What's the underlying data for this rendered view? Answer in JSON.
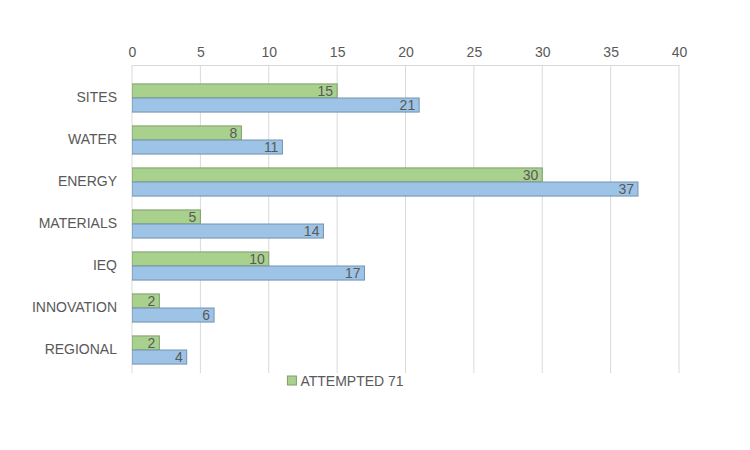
{
  "chart_data": {
    "type": "bar",
    "orientation": "horizontal",
    "categories": [
      "SITES",
      "WATER",
      "ENERGY",
      "MATERIALS",
      "IEQ",
      "INNOVATION",
      "REGIONAL"
    ],
    "series": [
      {
        "name": "ATTEMPTED 71",
        "color": "#a9d18e",
        "values": [
          15,
          8,
          30,
          5,
          10,
          2,
          2
        ]
      },
      {
        "color": "#9dc3e6",
        "values": [
          21,
          11,
          37,
          14,
          17,
          6,
          4
        ]
      }
    ],
    "xlim": [
      0,
      40
    ],
    "xticks": [
      0,
      5,
      10,
      15,
      20,
      25,
      30,
      35,
      40
    ],
    "grid": true,
    "data_labels": true,
    "legend": "bottom"
  }
}
